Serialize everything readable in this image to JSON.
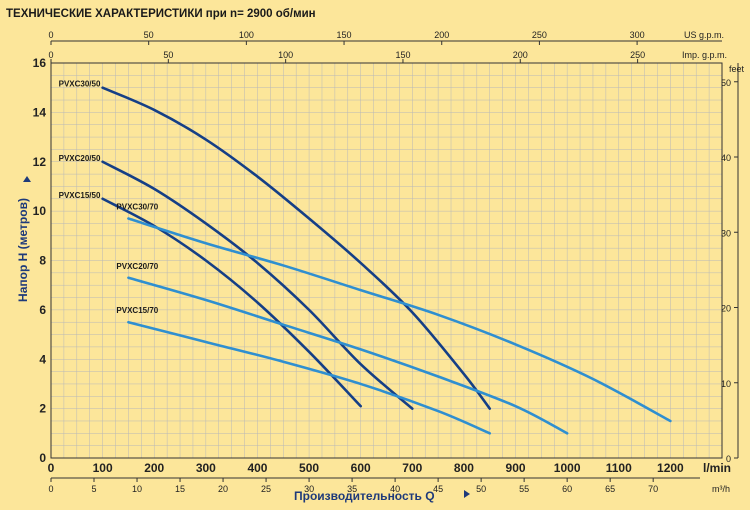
{
  "colors": {
    "background": "#fce69a",
    "grid": "#b8b8b8",
    "series_dark": "#153f86",
    "series_light": "#2f8fd0",
    "axis_title": "#1e3a7a"
  },
  "chart_data": {
    "type": "line",
    "title": "ТЕХНИЧЕСКИЕ ХАРАКТЕРИСТИКИ при n= 2900 об/мин",
    "ylabel": "Напор H   (метров)",
    "xlabel": "Производительность Q",
    "ylim": [
      0,
      16
    ],
    "yticks": [
      "0",
      "2",
      "4",
      "6",
      "8",
      "10",
      "12",
      "14",
      "16"
    ],
    "xlim_lmin": [
      0,
      1300
    ],
    "xticks_lmin": [
      "0",
      "100",
      "200",
      "300",
      "400",
      "500",
      "600",
      "700",
      "800",
      "900",
      "1000",
      "1100",
      "1200"
    ],
    "xunit_lmin": "l/min",
    "xticks_m3h": [
      "0",
      "5",
      "10",
      "15",
      "20",
      "25",
      "30",
      "35",
      "40",
      "45",
      "50",
      "55",
      "60",
      "65",
      "70"
    ],
    "xunit_m3h": "m³/h",
    "xticks_usgpm": [
      "0",
      "50",
      "100",
      "150",
      "200",
      "250",
      "300"
    ],
    "xunit_usgpm": "US g.p.m.",
    "xticks_impgpm": [
      "0",
      "50",
      "100",
      "150",
      "200",
      "250"
    ],
    "xunit_impgpm": "Imp. g.p.m.",
    "yticks_feet": [
      "0",
      "10",
      "20",
      "30",
      "40",
      "50"
    ],
    "yunit_feet": "feet",
    "grid": true,
    "series": [
      {
        "name": "PVXC30/50",
        "style": "dark",
        "x": [
          100,
          200,
          300,
          400,
          500,
          600,
          700,
          800,
          850
        ],
        "y": [
          15.0,
          14.1,
          12.9,
          11.4,
          9.7,
          7.9,
          5.9,
          3.4,
          2.0
        ]
      },
      {
        "name": "PVXC20/50",
        "style": "dark",
        "x": [
          100,
          200,
          300,
          400,
          500,
          600,
          700
        ],
        "y": [
          12.0,
          10.9,
          9.5,
          7.9,
          6.0,
          3.8,
          2.0
        ]
      },
      {
        "name": "PVXC15/50",
        "style": "dark",
        "x": [
          100,
          200,
          300,
          400,
          500,
          600
        ],
        "y": [
          10.5,
          9.4,
          8.0,
          6.3,
          4.3,
          2.1
        ]
      },
      {
        "name": "PVXC30/70",
        "style": "light",
        "x": [
          150,
          300,
          450,
          600,
          750,
          900,
          1050,
          1200
        ],
        "y": [
          9.7,
          8.7,
          7.8,
          6.8,
          5.8,
          4.6,
          3.2,
          1.5
        ]
      },
      {
        "name": "PVXC20/70",
        "style": "light",
        "x": [
          150,
          300,
          450,
          600,
          750,
          900,
          1000
        ],
        "y": [
          7.3,
          6.4,
          5.4,
          4.4,
          3.3,
          2.1,
          1.0
        ]
      },
      {
        "name": "PVXC15/70",
        "style": "light",
        "x": [
          150,
          300,
          450,
          600,
          750,
          850
        ],
        "y": [
          5.5,
          4.7,
          3.9,
          3.0,
          1.9,
          1.0
        ]
      }
    ]
  }
}
